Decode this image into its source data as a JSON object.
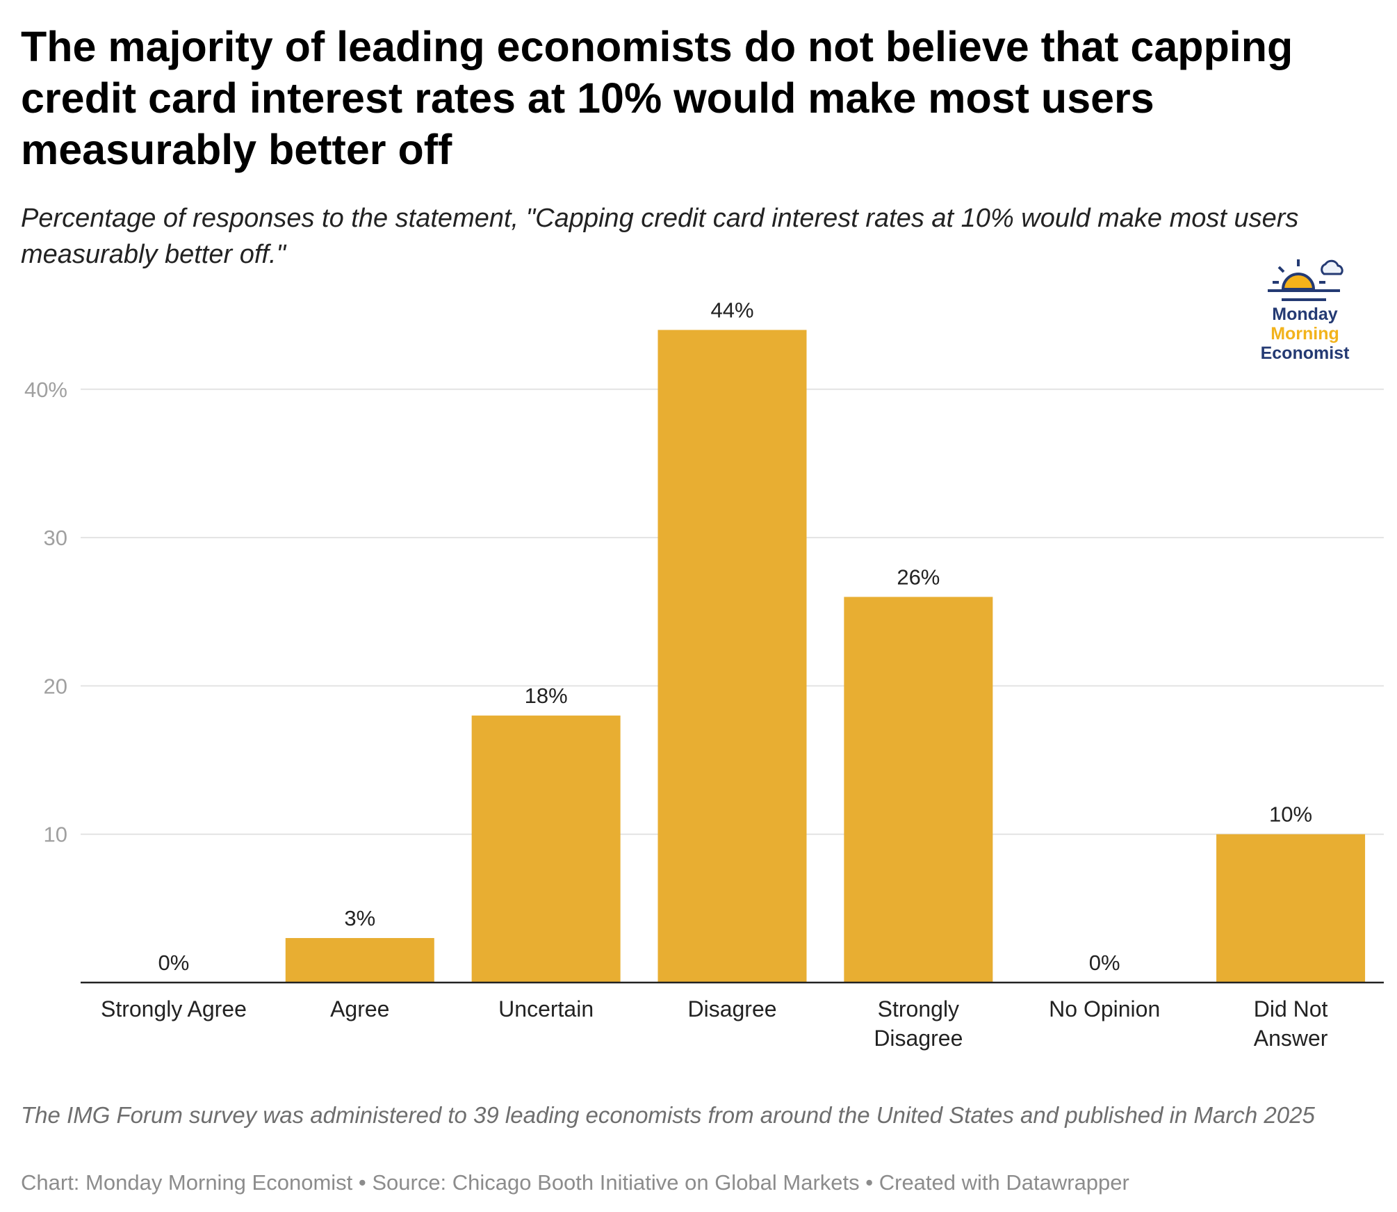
{
  "title": "The majority of leading economists do not believe that capping credit card interest rates at 10% would make most users measurably better off",
  "subtitle": "Percentage of responses to the statement, \"Capping credit card interest rates at 10% would make most users measurably better off.\"",
  "logo": {
    "line1": "Monday",
    "line2": "Morning",
    "line3": "Economist"
  },
  "note": "The IMG Forum survey was administered to 39 leading economists from around the United States and published in March 2025",
  "source": "Chart: Monday Morning Economist • Source: Chicago Booth Initiative on Global Markets • Created with Datawrapper",
  "colors": {
    "bar": "#e8ae32",
    "grid": "#e3e3e3",
    "axis": "#222222",
    "tick": "#a0a0a0"
  },
  "chart_data": {
    "type": "bar",
    "categories": [
      "Strongly Agree",
      "Agree",
      "Uncertain",
      "Disagree",
      "Strongly Disagree",
      "No Opinion",
      "Did Not Answer"
    ],
    "category_lines": [
      [
        "Strongly Agree"
      ],
      [
        "Agree"
      ],
      [
        "Uncertain"
      ],
      [
        "Disagree"
      ],
      [
        "Strongly",
        "Disagree"
      ],
      [
        "No Opinion"
      ],
      [
        "Did Not",
        "Answer"
      ]
    ],
    "values": [
      0,
      3,
      18,
      44,
      26,
      0,
      10
    ],
    "value_labels": [
      "0%",
      "3%",
      "18%",
      "44%",
      "26%",
      "0%",
      "10%"
    ],
    "yticks": [
      10,
      20,
      30,
      40
    ],
    "ytick_labels": [
      "10",
      "20",
      "30",
      "40%"
    ],
    "ylim": [
      0,
      48
    ],
    "xlabel": "",
    "ylabel": "",
    "grid": true
  }
}
